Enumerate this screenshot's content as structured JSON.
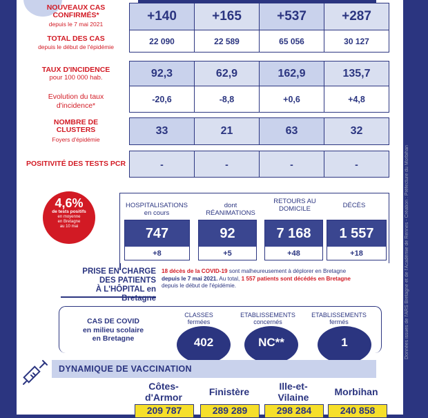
{
  "cases": {
    "nouveaux_label": "NOUVEAUX CAS CONFIRMÉS*",
    "nouveaux_sub": "depuis le 7 mai 2021",
    "nouveaux_values": [
      "+140",
      "+165",
      "+537",
      "+287"
    ],
    "total_label": "TOTAL DES CAS",
    "total_sub": "depuis le début de l'épidémie",
    "total_values": [
      "22 090",
      "22 589",
      "65 056",
      "30 127"
    ],
    "taux_label": "TAUX D'INCIDENCE",
    "taux_sub": "pour 100 000 hab.",
    "taux_values": [
      "92,3",
      "62,9",
      "162,9",
      "135,7"
    ],
    "evol_label": "Evolution du taux d'incidence*",
    "evol_values": [
      "-20,6",
      "-8,8",
      "+0,6",
      "+4,8"
    ],
    "clusters_label": "NOMBRE DE CLUSTERS",
    "clusters_sub": "Foyers d'épidémie",
    "clusters_values": [
      "33",
      "21",
      "63",
      "32"
    ],
    "pcr_label": "POSITIVITÉ DES TESTS PCR",
    "pcr_values": [
      "-",
      "-",
      "-",
      "-"
    ]
  },
  "positivity": {
    "value": "4,6%",
    "line1": "de tests positifs",
    "line2": "en moyenne",
    "line3": "en Bretagne",
    "line4": "au 10 mai"
  },
  "hospital": {
    "headers": [
      {
        "l1": "HOSPITALISATIONS",
        "l2": "en cours"
      },
      {
        "l1": "dont",
        "l2": "RÉANIMATIONS"
      },
      {
        "l1": "RETOURS AU",
        "l2": "DOMICILE"
      },
      {
        "l1": "DÉCÈS",
        "l2": ""
      }
    ],
    "values": [
      "747",
      "92",
      "7 168",
      "1 557"
    ],
    "deltas": [
      "+8",
      "+5",
      "+48",
      "+18"
    ],
    "title1": "PRISE EN CHARGE",
    "title2": "DES PATIENTS",
    "title3": "À L'HÔPITAL en Bretagne",
    "note_red1": "18 décès de la COVID-19",
    "note_black1": " sont malheureusement à déplorer en Bretagne",
    "note_bold2": "depuis le 7 mai 2021.",
    "note_black2": " Au total, ",
    "note_red2": "1 557 patients sont décédés en Bretagne",
    "note_black3": "depuis le début de l'épidémie."
  },
  "school": {
    "title1": "CAS DE COVID",
    "title2": "en milieu scolaire",
    "title3": "en Bretagne",
    "items": [
      {
        "h1": "CLASSES",
        "h2": "fermées",
        "value": "402"
      },
      {
        "h1": "ETABLISSEMENTS",
        "h2": "concernés",
        "value": "NC**"
      },
      {
        "h1": "ETABLISSEMENTS",
        "h2": "fermés",
        "value": "1"
      }
    ]
  },
  "vaccination": {
    "title": "DYNAMIQUE DE VACCINATION",
    "depts": [
      {
        "l1": "Côtes-",
        "l2": "d'Armor"
      },
      {
        "l1": "Finistère",
        "l2": ""
      },
      {
        "l1": "Ille-et-",
        "l2": "Vilaine"
      },
      {
        "l1": "Morbihan",
        "l2": ""
      }
    ],
    "values": [
      "209 787",
      "289 289",
      "298 284",
      "240 858"
    ]
  },
  "credit": "Données issues de l'ARS Bretagne et de l'Académie de Rennes - Création : Préfecture du Morbihan",
  "colors": {
    "navy": "#2b3580",
    "red": "#d21a24",
    "light_blue": "#d9dff0",
    "yellow": "#f6df2a"
  }
}
